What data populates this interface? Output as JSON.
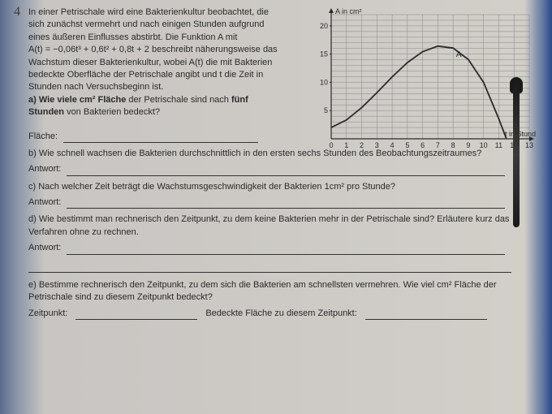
{
  "problem": {
    "number": "4",
    "intro1": "In einer Petrischale wird eine Bakterienkultur beobachtet, die sich zunächst vermehrt und nach einigen Stunden aufgrund eines äußeren Einflusses abstirbt. Die Funktion A mit",
    "formula": "A(t) = −0,06t³ + 0,6t² + 0,8t + 2",
    "intro2": " beschreibt näherungsweise das Wachstum dieser Bakterienkultur, wobei A(t) die mit Bakterien bedeckte Oberfläche der Petrischale angibt und t die Zeit in Stunden nach Versuchsbeginn ist.",
    "qa_label": "a) Wie viele cm² Fläche",
    "qa_text": " der Petrischale sind nach ",
    "qa_bold2": "fünf Stunden",
    "qa_text2": " von Bakterien bedeckt?",
    "flaeche_label": "Fläche:",
    "qb": "b) Wie schnell wachsen die Bakterien durchschnittlich in den ersten sechs Stunden des Beobachtungszeitraumes?",
    "antwort_label": "Antwort:",
    "qc": "c) Nach welcher Zeit beträgt die Wachstumsgeschwindigkeit der Bakterien 1cm² pro Stunde?",
    "qd": "d) Wie bestimmt man rechnerisch den Zeitpunkt, zu dem keine Bakterien mehr in der Petrischale sind? Erläutere kurz das Verfahren ohne zu rechnen.",
    "qe": "e) Bestimme rechnerisch den Zeitpunkt, zu dem sich die Bakterien am schnellsten vermehren. Wie viel cm² Fläche der Petrischale sind zu diesem Zeitpunkt bedeckt?",
    "zeitpunkt_label": "Zeitpunkt:",
    "bedeckte_label": "Bedeckte Fläche zu diesem Zeitpunkt:"
  },
  "chart": {
    "type": "line",
    "y_axis_label": "A in cm²",
    "x_axis_label": "t in Stunden",
    "curve_label": "A",
    "xlim": [
      0,
      13
    ],
    "ylim": [
      0,
      22
    ],
    "x_ticks": [
      "0",
      "1",
      "2",
      "3",
      "4",
      "5",
      "6",
      "7",
      "8",
      "9",
      "10",
      "11",
      "12",
      "13"
    ],
    "y_ticks": [
      "5",
      "10",
      "15",
      "20"
    ],
    "curve_points": [
      [
        0,
        2
      ],
      [
        1,
        3.34
      ],
      [
        2,
        5.52
      ],
      [
        3,
        8.18
      ],
      [
        4,
        10.96
      ],
      [
        5,
        13.5
      ],
      [
        6,
        15.44
      ],
      [
        7,
        16.42
      ],
      [
        8,
        16.08
      ],
      [
        9,
        14.06
      ],
      [
        10,
        10
      ],
      [
        11,
        3.54
      ],
      [
        11.5,
        0
      ]
    ],
    "grid_color": "#888888",
    "line_color": "#2a2a2a",
    "background_color": "#d2cfc9",
    "line_width": 1.8,
    "axis_width": 1.2,
    "grid_width": 0.5,
    "font_size": 9
  }
}
